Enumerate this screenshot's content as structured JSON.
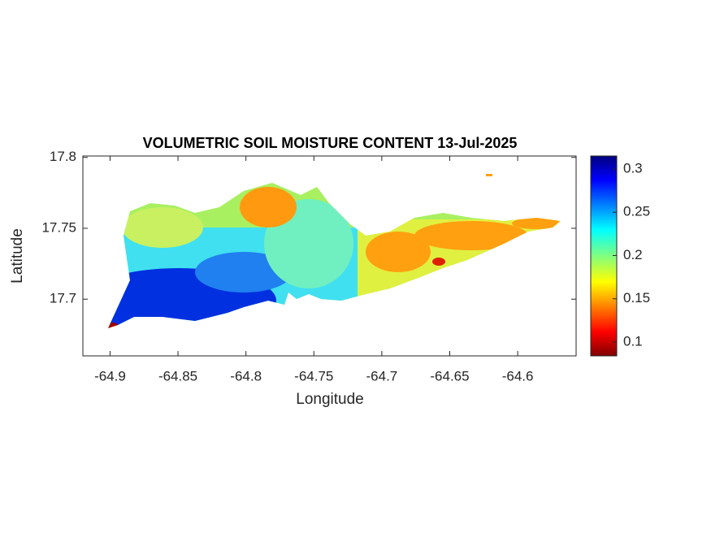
{
  "chart_data": {
    "type": "map",
    "title": "VOLUMETRIC SOIL MOISTURE CONTENT 13-Jul-2025",
    "x_label": "Longitude",
    "y_label": "Latitude",
    "xlim": [
      -64.92,
      -64.557
    ],
    "ylim": [
      17.66,
      17.801
    ],
    "xticks": [
      -64.9,
      -64.85,
      -64.8,
      -64.75,
      -64.7,
      -64.65,
      -64.6
    ],
    "yticks": [
      17.7,
      17.75,
      17.8
    ],
    "colorbar": {
      "colormap": "jet",
      "clim": [
        0.084,
        0.315
      ],
      "ticks": [
        0.1,
        0.15,
        0.2,
        0.25,
        0.3
      ]
    }
  }
}
